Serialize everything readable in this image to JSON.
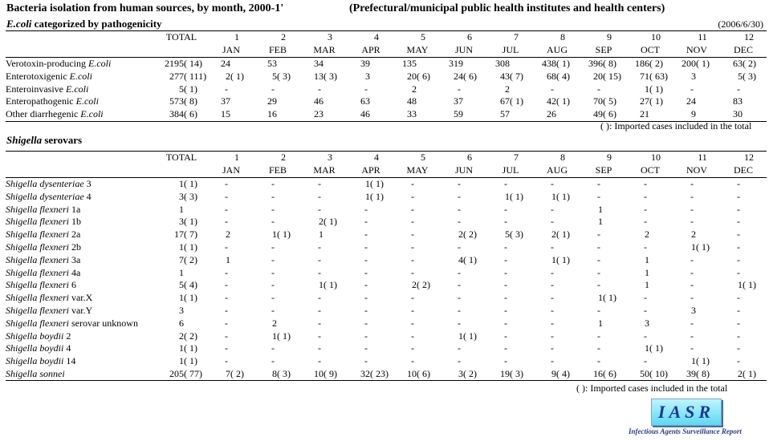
{
  "title": "Bacteria isolation from human sources, by month, 2000-1'",
  "source": "(Prefectural/municipal public health institutes and health centers)",
  "date": "(2006/6/30)",
  "ecoli": {
    "title_italic": "E.coli",
    "title_rest": " categorized by pathogenicity",
    "total_label": "TOTAL",
    "month_nums": [
      "1",
      "2",
      "3",
      "4",
      "5",
      "6",
      "7",
      "8",
      "9",
      "10",
      "11",
      "12"
    ],
    "month_names": [
      "JAN",
      "FEB",
      "MAR",
      "APR",
      "MAY",
      "JUN",
      "JUL",
      "AUG",
      "SEP",
      "OCT",
      "NOV",
      "DEC"
    ],
    "rows": [
      {
        "pre": "Verotoxin-producing ",
        "ital": "E.coli",
        "post": "",
        "cells": [
          [
            "2195",
            "14"
          ],
          [
            "24",
            ""
          ],
          [
            "53",
            ""
          ],
          [
            "34",
            ""
          ],
          [
            "39",
            ""
          ],
          [
            "135",
            ""
          ],
          [
            "319",
            ""
          ],
          [
            "308",
            ""
          ],
          [
            "438",
            "1"
          ],
          [
            "396",
            "8"
          ],
          [
            "186",
            "2"
          ],
          [
            "200",
            "1"
          ],
          [
            "63",
            "2"
          ]
        ]
      },
      {
        "pre": "Enterotoxigenic ",
        "ital": "E.coli",
        "post": "",
        "cells": [
          [
            "277",
            "111"
          ],
          [
            "2",
            "1"
          ],
          [
            "5",
            "3"
          ],
          [
            "13",
            "3"
          ],
          [
            "3",
            ""
          ],
          [
            "20",
            "6"
          ],
          [
            "24",
            "6"
          ],
          [
            "43",
            "7"
          ],
          [
            "68",
            "4"
          ],
          [
            "20",
            "15"
          ],
          [
            "71",
            "63"
          ],
          [
            "3",
            ""
          ],
          [
            "5",
            "3"
          ]
        ]
      },
      {
        "pre": "Enteroinvasive ",
        "ital": "E.coli",
        "post": "",
        "cells": [
          [
            "5",
            "1"
          ],
          [
            "-",
            ""
          ],
          [
            "-",
            ""
          ],
          [
            "-",
            ""
          ],
          [
            "-",
            ""
          ],
          [
            "2",
            ""
          ],
          [
            "-",
            ""
          ],
          [
            "2",
            ""
          ],
          [
            "-",
            ""
          ],
          [
            "-",
            ""
          ],
          [
            "1",
            "1"
          ],
          [
            "-",
            ""
          ],
          [
            "-",
            ""
          ]
        ]
      },
      {
        "pre": "Enteropathogenic ",
        "ital": "E.coli",
        "post": "",
        "cells": [
          [
            "573",
            "8"
          ],
          [
            "37",
            ""
          ],
          [
            "29",
            ""
          ],
          [
            "46",
            ""
          ],
          [
            "63",
            ""
          ],
          [
            "48",
            ""
          ],
          [
            "37",
            ""
          ],
          [
            "67",
            "1"
          ],
          [
            "42",
            "1"
          ],
          [
            "70",
            "5"
          ],
          [
            "27",
            "1"
          ],
          [
            "24",
            ""
          ],
          [
            "83",
            ""
          ]
        ]
      },
      {
        "pre": "Other diarrhegenic ",
        "ital": "E.coli",
        "post": "",
        "cells": [
          [
            "384",
            "6"
          ],
          [
            "15",
            ""
          ],
          [
            "16",
            ""
          ],
          [
            "23",
            ""
          ],
          [
            "46",
            ""
          ],
          [
            "33",
            ""
          ],
          [
            "59",
            ""
          ],
          [
            "57",
            ""
          ],
          [
            "26",
            ""
          ],
          [
            "49",
            "6"
          ],
          [
            "21",
            ""
          ],
          [
            "9",
            ""
          ],
          [
            "30",
            ""
          ]
        ]
      }
    ],
    "note": "(   ): Imported cases included in the total"
  },
  "shigella": {
    "title_italic": "Shigella",
    "title_rest": " serovars",
    "rows": [
      {
        "pre": "",
        "ital": "Shigella dysenteriae",
        "post": " 3",
        "cells": [
          [
            "1",
            "1"
          ],
          [
            "-",
            ""
          ],
          [
            "-",
            ""
          ],
          [
            "-",
            ""
          ],
          [
            "1",
            "1"
          ],
          [
            "-",
            ""
          ],
          [
            "-",
            ""
          ],
          [
            "-",
            ""
          ],
          [
            "-",
            ""
          ],
          [
            "-",
            ""
          ],
          [
            "-",
            ""
          ],
          [
            "-",
            ""
          ],
          [
            "-",
            ""
          ]
        ]
      },
      {
        "pre": "",
        "ital": "Shigella dysenteriae",
        "post": " 4",
        "cells": [
          [
            "3",
            "3"
          ],
          [
            "-",
            ""
          ],
          [
            "-",
            ""
          ],
          [
            "-",
            ""
          ],
          [
            "1",
            "1"
          ],
          [
            "-",
            ""
          ],
          [
            "-",
            ""
          ],
          [
            "1",
            "1"
          ],
          [
            "1",
            "1"
          ],
          [
            "-",
            ""
          ],
          [
            "-",
            ""
          ],
          [
            "-",
            ""
          ],
          [
            "-",
            ""
          ]
        ]
      },
      {
        "pre": "",
        "ital": "Shigella flexneri",
        "post": " 1a",
        "cells": [
          [
            "1",
            ""
          ],
          [
            "-",
            ""
          ],
          [
            "-",
            ""
          ],
          [
            "-",
            ""
          ],
          [
            "-",
            ""
          ],
          [
            "-",
            ""
          ],
          [
            "-",
            ""
          ],
          [
            "-",
            ""
          ],
          [
            "-",
            ""
          ],
          [
            "1",
            ""
          ],
          [
            "-",
            ""
          ],
          [
            "-",
            ""
          ],
          [
            "-",
            ""
          ]
        ]
      },
      {
        "pre": "",
        "ital": "Shigella flexneri",
        "post": " 1b",
        "cells": [
          [
            "3",
            "1"
          ],
          [
            "-",
            ""
          ],
          [
            "-",
            ""
          ],
          [
            "2",
            "1"
          ],
          [
            "-",
            ""
          ],
          [
            "-",
            ""
          ],
          [
            "-",
            ""
          ],
          [
            "-",
            ""
          ],
          [
            "-",
            ""
          ],
          [
            "1",
            ""
          ],
          [
            "-",
            ""
          ],
          [
            "-",
            ""
          ],
          [
            "-",
            ""
          ]
        ]
      },
      {
        "pre": "",
        "ital": "Shigella flexneri",
        "post": " 2a",
        "cells": [
          [
            "17",
            "7"
          ],
          [
            "2",
            ""
          ],
          [
            "1",
            "1"
          ],
          [
            "1",
            ""
          ],
          [
            "-",
            ""
          ],
          [
            "-",
            ""
          ],
          [
            "2",
            "2"
          ],
          [
            "5",
            "3"
          ],
          [
            "2",
            "1"
          ],
          [
            "-",
            ""
          ],
          [
            "2",
            ""
          ],
          [
            "2",
            ""
          ],
          [
            "-",
            ""
          ]
        ]
      },
      {
        "pre": "",
        "ital": "Shigella flexneri",
        "post": " 2b",
        "cells": [
          [
            "1",
            "1"
          ],
          [
            "-",
            ""
          ],
          [
            "-",
            ""
          ],
          [
            "-",
            ""
          ],
          [
            "-",
            ""
          ],
          [
            "-",
            ""
          ],
          [
            "-",
            ""
          ],
          [
            "-",
            ""
          ],
          [
            "-",
            ""
          ],
          [
            "-",
            ""
          ],
          [
            "-",
            ""
          ],
          [
            "1",
            "1"
          ],
          [
            "-",
            ""
          ]
        ]
      },
      {
        "pre": "",
        "ital": "Shigella flexneri",
        "post": " 3a",
        "cells": [
          [
            "7",
            "2"
          ],
          [
            "1",
            ""
          ],
          [
            "-",
            ""
          ],
          [
            "-",
            ""
          ],
          [
            "-",
            ""
          ],
          [
            "-",
            ""
          ],
          [
            "4",
            "1"
          ],
          [
            "-",
            ""
          ],
          [
            "1",
            "1"
          ],
          [
            "-",
            ""
          ],
          [
            "1",
            ""
          ],
          [
            "-",
            ""
          ],
          [
            "-",
            ""
          ]
        ]
      },
      {
        "pre": "",
        "ital": "Shigella flexneri",
        "post": " 4a",
        "cells": [
          [
            "1",
            ""
          ],
          [
            "-",
            ""
          ],
          [
            "-",
            ""
          ],
          [
            "-",
            ""
          ],
          [
            "-",
            ""
          ],
          [
            "-",
            ""
          ],
          [
            "-",
            ""
          ],
          [
            "-",
            ""
          ],
          [
            "-",
            ""
          ],
          [
            "-",
            ""
          ],
          [
            "1",
            ""
          ],
          [
            "-",
            ""
          ],
          [
            "-",
            ""
          ]
        ]
      },
      {
        "pre": "",
        "ital": "Shigella flexneri",
        "post": " 6",
        "cells": [
          [
            "5",
            "4"
          ],
          [
            "-",
            ""
          ],
          [
            "-",
            ""
          ],
          [
            "1",
            "1"
          ],
          [
            "-",
            ""
          ],
          [
            "2",
            "2"
          ],
          [
            "-",
            ""
          ],
          [
            "-",
            ""
          ],
          [
            "-",
            ""
          ],
          [
            "-",
            ""
          ],
          [
            "1",
            ""
          ],
          [
            "-",
            ""
          ],
          [
            "1",
            "1"
          ]
        ]
      },
      {
        "pre": "",
        "ital": "Shigella flexneri",
        "post": " var.X",
        "cells": [
          [
            "1",
            "1"
          ],
          [
            "-",
            ""
          ],
          [
            "-",
            ""
          ],
          [
            "-",
            ""
          ],
          [
            "-",
            ""
          ],
          [
            "-",
            ""
          ],
          [
            "-",
            ""
          ],
          [
            "-",
            ""
          ],
          [
            "-",
            ""
          ],
          [
            "1",
            "1"
          ],
          [
            "-",
            ""
          ],
          [
            "-",
            ""
          ],
          [
            "-",
            ""
          ]
        ]
      },
      {
        "pre": "",
        "ital": "Shigella flexneri",
        "post": " var.Y",
        "cells": [
          [
            "3",
            ""
          ],
          [
            "-",
            ""
          ],
          [
            "-",
            ""
          ],
          [
            "-",
            ""
          ],
          [
            "-",
            ""
          ],
          [
            "-",
            ""
          ],
          [
            "-",
            ""
          ],
          [
            "-",
            ""
          ],
          [
            "-",
            ""
          ],
          [
            "-",
            ""
          ],
          [
            "-",
            ""
          ],
          [
            "3",
            ""
          ],
          [
            "-",
            ""
          ]
        ]
      },
      {
        "pre": "",
        "ital": "Shigella flexneri",
        "post": " serovar unknown",
        "cells": [
          [
            "6",
            ""
          ],
          [
            "-",
            ""
          ],
          [
            "2",
            ""
          ],
          [
            "-",
            ""
          ],
          [
            "-",
            ""
          ],
          [
            "-",
            ""
          ],
          [
            "-",
            ""
          ],
          [
            "-",
            ""
          ],
          [
            "-",
            ""
          ],
          [
            "1",
            ""
          ],
          [
            "3",
            ""
          ],
          [
            "-",
            ""
          ],
          [
            "-",
            ""
          ]
        ]
      },
      {
        "pre": "",
        "ital": "Shigella boydii",
        "post": " 2",
        "cells": [
          [
            "2",
            "2"
          ],
          [
            "-",
            ""
          ],
          [
            "1",
            "1"
          ],
          [
            "-",
            ""
          ],
          [
            "-",
            ""
          ],
          [
            "-",
            ""
          ],
          [
            "1",
            "1"
          ],
          [
            "-",
            ""
          ],
          [
            "-",
            ""
          ],
          [
            "-",
            ""
          ],
          [
            "-",
            ""
          ],
          [
            "-",
            ""
          ],
          [
            "-",
            ""
          ]
        ]
      },
      {
        "pre": "",
        "ital": "Shigella boydii",
        "post": " 4",
        "cells": [
          [
            "1",
            "1"
          ],
          [
            "-",
            ""
          ],
          [
            "-",
            ""
          ],
          [
            "-",
            ""
          ],
          [
            "-",
            ""
          ],
          [
            "-",
            ""
          ],
          [
            "-",
            ""
          ],
          [
            "-",
            ""
          ],
          [
            "-",
            ""
          ],
          [
            "-",
            ""
          ],
          [
            "1",
            "1"
          ],
          [
            "-",
            ""
          ],
          [
            "-",
            ""
          ]
        ]
      },
      {
        "pre": "",
        "ital": "Shigella boydii",
        "post": " 14",
        "cells": [
          [
            "1",
            "1"
          ],
          [
            "-",
            ""
          ],
          [
            "-",
            ""
          ],
          [
            "-",
            ""
          ],
          [
            "-",
            ""
          ],
          [
            "-",
            ""
          ],
          [
            "-",
            ""
          ],
          [
            "-",
            ""
          ],
          [
            "-",
            ""
          ],
          [
            "-",
            ""
          ],
          [
            "-",
            ""
          ],
          [
            "1",
            "1"
          ],
          [
            "-",
            ""
          ]
        ]
      },
      {
        "pre": "",
        "ital": "Shigella sonnei",
        "post": "",
        "cells": [
          [
            "205",
            "77"
          ],
          [
            "7",
            "2"
          ],
          [
            "8",
            "3"
          ],
          [
            "10",
            "9"
          ],
          [
            "32",
            "23"
          ],
          [
            "10",
            "6"
          ],
          [
            "3",
            "2"
          ],
          [
            "19",
            "3"
          ],
          [
            "9",
            "4"
          ],
          [
            "16",
            "6"
          ],
          [
            "50",
            "10"
          ],
          [
            "39",
            "8"
          ],
          [
            "2",
            "1"
          ]
        ]
      }
    ],
    "note": "(   ): Imported cases included in the total"
  },
  "logo": {
    "text": "IASR",
    "subtitle": "Infectious Agents Surveillance Report",
    "colors": [
      "#5ed8f2",
      "#1a3a8c"
    ]
  }
}
